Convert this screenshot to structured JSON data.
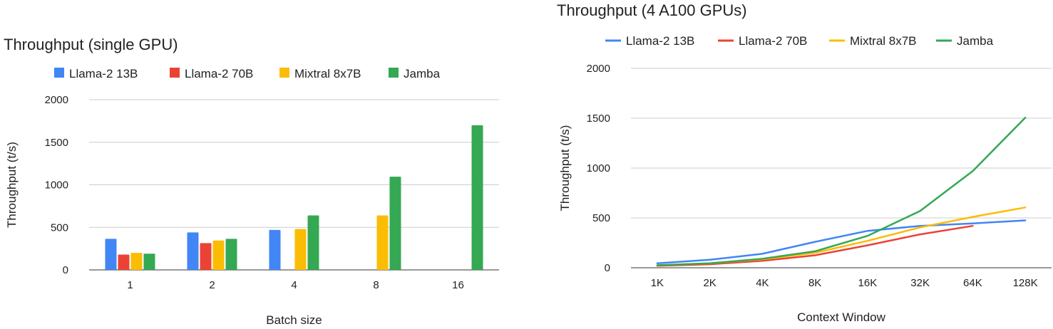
{
  "chart_data": [
    {
      "type": "bar",
      "title": "Throughput (single GPU)",
      "xlabel": "Batch size",
      "ylabel": "Throughput (t/s)",
      "ylim": [
        0,
        2000
      ],
      "yticks": [
        "0",
        "500",
        "1000",
        "1500",
        "2000"
      ],
      "grid": true,
      "legend_position": "top",
      "categories": [
        "1",
        "2",
        "4",
        "8",
        "16"
      ],
      "series": [
        {
          "name": "Llama-2 13B",
          "color": "#4285F4",
          "values": [
            365,
            440,
            470,
            null,
            null
          ]
        },
        {
          "name": "Llama-2 70B",
          "color": "#EA4335",
          "values": [
            180,
            315,
            null,
            null,
            null
          ]
        },
        {
          "name": "Mixtral 8x7B",
          "color": "#FBBC04",
          "values": [
            200,
            345,
            480,
            640,
            null
          ]
        },
        {
          "name": "Jamba",
          "color": "#34A853",
          "values": [
            190,
            365,
            640,
            1095,
            1700
          ]
        }
      ]
    },
    {
      "type": "line",
      "title": "Throughput (4 A100 GPUs)",
      "xlabel": "Context Window",
      "ylabel": "Throughput (t/s)",
      "ylim": [
        0,
        2000
      ],
      "yticks": [
        "0",
        "500",
        "1000",
        "1500",
        "2000"
      ],
      "grid": true,
      "legend_position": "top",
      "categories": [
        "1K",
        "2K",
        "4K",
        "8K",
        "16K",
        "32K",
        "64K",
        "128K"
      ],
      "series": [
        {
          "name": "Llama-2 13B",
          "color": "#4285F4",
          "values": [
            45,
            80,
            140,
            260,
            370,
            420,
            445,
            475
          ]
        },
        {
          "name": "Llama-2 70B",
          "color": "#EA4335",
          "values": [
            20,
            35,
            70,
            125,
            225,
            335,
            420,
            null
          ]
        },
        {
          "name": "Mixtral 8x7B",
          "color": "#FBBC04",
          "values": [
            25,
            45,
            85,
            150,
            270,
            405,
            510,
            605
          ]
        },
        {
          "name": "Jamba",
          "color": "#34A853",
          "values": [
            25,
            45,
            90,
            165,
            320,
            570,
            970,
            1505
          ]
        }
      ]
    }
  ]
}
